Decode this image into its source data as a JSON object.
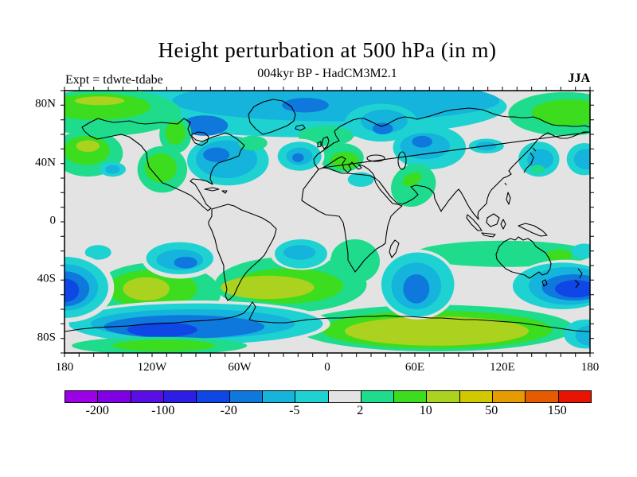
{
  "chart_data": {
    "type": "heatmap",
    "subtype": "filled-contour-world-map",
    "title": "Height perturbation at 500 hPa (in m)",
    "subtitle": "004kyr BP - HadCM3M2.1",
    "annotations": {
      "experiment": "Expt = tdwte-tdabe",
      "season": "JJA"
    },
    "units": "m",
    "projection": "equirectangular",
    "lon_range": [
      -180,
      180
    ],
    "lat_range": [
      -90,
      90
    ],
    "axes": {
      "minor_tick_step_deg": 10,
      "lon_ticks": [
        {
          "label": "180",
          "lon": -180
        },
        {
          "label": "120W",
          "lon": -120
        },
        {
          "label": "60W",
          "lon": -60
        },
        {
          "label": "0",
          "lon": 0
        },
        {
          "label": "60E",
          "lon": 60
        },
        {
          "label": "120E",
          "lon": 120
        },
        {
          "label": "180",
          "lon": 180
        }
      ],
      "lat_ticks": [
        {
          "label": "80N",
          "lat": 80
        },
        {
          "label": "40N",
          "lat": 40
        },
        {
          "label": "0",
          "lat": 0
        },
        {
          "label": "40S",
          "lat": -40
        },
        {
          "label": "80S",
          "lat": -80
        }
      ]
    },
    "contour_levels": [
      -200,
      -150,
      -100,
      -50,
      -20,
      -10,
      -5,
      -2,
      2,
      5,
      10,
      20,
      50,
      100,
      150
    ],
    "palette": [
      "#9b00e6",
      "#8000e6",
      "#5a0ee6",
      "#2d1ee6",
      "#0f46e6",
      "#0f78dc",
      "#14b4dc",
      "#1ed2d2",
      "#e3e3e3",
      "#1edc8c",
      "#3cdc1e",
      "#aad21e",
      "#d2c800",
      "#e69b00",
      "#e65a00",
      "#e61400"
    ],
    "background_color": "#e3e3e3",
    "colorbar": {
      "labels": [
        {
          "text": "-200",
          "boundary": 1
        },
        {
          "text": "-100",
          "boundary": 3
        },
        {
          "text": "-20",
          "boundary": 5
        },
        {
          "text": "-5",
          "boundary": 7
        },
        {
          "text": "2",
          "boundary": 9
        },
        {
          "text": "10",
          "boundary": 11
        },
        {
          "text": "50",
          "boundary": 13
        },
        {
          "text": "150",
          "boundary": 15
        }
      ]
    },
    "anomalies": [
      {
        "name": "arctic-negative",
        "blobs": [
          [
            -11,
            79,
            134,
            21,
            0,
            7
          ],
          [
            6,
            83,
            112,
            14,
            0,
            6
          ],
          [
            -15,
            80,
            16,
            5,
            0,
            5
          ],
          [
            37,
            68,
            25,
            13,
            0,
            7
          ],
          [
            39,
            69,
            16,
            8,
            0,
            6
          ],
          [
            38,
            64,
            7,
            4,
            0,
            5
          ],
          [
            -84,
            66,
            16,
            7,
            0,
            5
          ]
        ]
      },
      {
        "name": "alaska-arctic-positive",
        "blobs": [
          [
            -152,
            75,
            52,
            16,
            0,
            9
          ],
          [
            -157,
            79,
            36,
            9,
            0,
            10
          ],
          [
            -156,
            83,
            17,
            3,
            0,
            11
          ]
        ]
      },
      {
        "name": "baffin-positive",
        "blobs": [
          [
            -104,
            60,
            11,
            13,
            0,
            9
          ],
          [
            -104,
            61,
            7,
            8,
            0,
            10
          ]
        ]
      },
      {
        "name": "east-siberia-positive",
        "blobs": [
          [
            163,
            74,
            39,
            15,
            0,
            9
          ],
          [
            166,
            75,
            26,
            9,
            0,
            10
          ]
        ]
      },
      {
        "name": "europe-positive",
        "blobs": [
          [
            -1,
            59,
            19,
            7,
            0,
            9
          ],
          [
            10,
            44,
            15,
            10,
            0,
            9
          ],
          [
            12,
            42,
            10,
            6,
            0,
            10
          ]
        ]
      },
      {
        "name": "ne-pacific-positive",
        "blobs": [
          [
            -164,
            47,
            24,
            16,
            0,
            9
          ],
          [
            -165,
            49,
            16,
            10,
            0,
            10
          ],
          [
            -164,
            52,
            8,
            4,
            0,
            11
          ]
        ]
      },
      {
        "name": "west-us-positive",
        "blobs": [
          [
            -113,
            36,
            17,
            16,
            0,
            9
          ],
          [
            -114,
            37,
            11,
            10,
            0,
            10
          ]
        ]
      },
      {
        "name": "subtropical-pacific-negative",
        "blobs": [
          [
            -147,
            36,
            9,
            5,
            0,
            7
          ],
          [
            -147,
            36,
            5,
            3,
            0,
            6
          ]
        ]
      },
      {
        "name": "east-north-america-negative",
        "blobs": [
          [
            -68,
            42,
            28,
            17,
            0,
            7
          ],
          [
            -69,
            43,
            21,
            13,
            0,
            6
          ],
          [
            -76,
            46,
            9,
            5,
            0,
            5
          ]
        ]
      },
      {
        "name": "newfoundland-positive",
        "blobs": [
          [
            -51,
            54,
            10,
            5,
            0,
            9
          ]
        ]
      },
      {
        "name": "mid-atlantic-negative",
        "blobs": [
          [
            -19,
            45,
            17,
            12,
            0,
            8
          ],
          [
            -19,
            45,
            15,
            10,
            0,
            7
          ],
          [
            -19,
            45,
            9,
            6,
            0,
            6
          ],
          [
            -20,
            44,
            4,
            3,
            0,
            5
          ]
        ]
      },
      {
        "name": "central-asia-negative",
        "blobs": [
          [
            70,
            51,
            25,
            15,
            0,
            7
          ],
          [
            67,
            52,
            17,
            9,
            0,
            6
          ],
          [
            65,
            55,
            7,
            4,
            0,
            5
          ],
          [
            109,
            52,
            12,
            5,
            0,
            7
          ],
          [
            109,
            52,
            7,
            3,
            0,
            6
          ]
        ]
      },
      {
        "name": "middle-east-positive",
        "blobs": [
          [
            59,
            25,
            16,
            14,
            -35,
            9
          ],
          [
            58,
            29,
            7,
            4,
            -25,
            10
          ]
        ]
      },
      {
        "name": "libya-negative",
        "blobs": [
          [
            23,
            29,
            9,
            5,
            0,
            7
          ]
        ]
      },
      {
        "name": "japan-negative",
        "blobs": [
          [
            145,
            43,
            14,
            12,
            0,
            7
          ],
          [
            146,
            43,
            9,
            7,
            0,
            6
          ],
          [
            144,
            36,
            5,
            3,
            0,
            9
          ]
        ]
      },
      {
        "name": "nw-pacific-negative",
        "blobs": [
          [
            176,
            43,
            12,
            11,
            0,
            7
          ],
          [
            177,
            43,
            8,
            7,
            0,
            6
          ]
        ]
      },
      {
        "name": "se-pacific-positive-band",
        "blobs": [
          [
            -117,
            -49,
            44,
            21,
            0,
            9
          ],
          [
            -120,
            -46,
            31,
            13,
            0,
            10
          ],
          [
            -124,
            -46,
            16,
            8,
            0,
            11
          ]
        ]
      },
      {
        "name": "south-atlantic-positive-band",
        "blobs": [
          [
            -25,
            -43,
            52,
            19,
            0,
            9
          ],
          [
            -27,
            -44,
            38,
            12,
            0,
            10
          ],
          [
            -41,
            -45,
            32,
            8,
            0,
            11
          ]
        ]
      },
      {
        "name": "south-africa-positive",
        "blobs": [
          [
            19,
            -27,
            17,
            15,
            0,
            9
          ]
        ]
      },
      {
        "name": "australia-positive-band",
        "blobs": [
          [
            121,
            -22,
            61,
            9,
            0,
            9
          ],
          [
            159,
            -23,
            9,
            4,
            0,
            10
          ]
        ]
      },
      {
        "name": "east-antarctic-positive-band",
        "blobs": [
          [
            74,
            -73,
            95,
            16,
            0,
            9
          ],
          [
            75,
            -74,
            79,
            13,
            0,
            10
          ],
          [
            75,
            -75,
            63,
            10,
            0,
            11
          ]
        ]
      },
      {
        "name": "south-atlantic-negative",
        "blobs": [
          [
            -18,
            -22,
            21,
            11,
            0,
            8
          ],
          [
            -18,
            -22,
            18,
            10,
            0,
            7
          ],
          [
            -19,
            -21,
            11,
            5,
            0,
            6
          ]
        ]
      },
      {
        "name": "west-antarctic-negative-band",
        "blobs": [
          [
            -90,
            -70,
            92,
            16,
            0,
            8
          ],
          [
            -90,
            -70,
            87,
            14,
            0,
            7
          ],
          [
            -92,
            -70,
            70,
            10,
            0,
            6
          ],
          [
            -98,
            -72,
            55,
            8,
            0,
            5
          ],
          [
            -113,
            -74,
            24,
            5,
            0,
            4
          ]
        ]
      },
      {
        "name": "antarctic-interior-positive",
        "blobs": [
          [
            -115,
            -85,
            60,
            6,
            0,
            9
          ],
          [
            -112,
            -85,
            35,
            4,
            0,
            10
          ]
        ]
      },
      {
        "name": "south-pacific-negative-small",
        "blobs": [
          [
            -157,
            -21,
            9,
            5,
            0,
            7
          ]
        ]
      },
      {
        "name": "central-south-pacific-negative",
        "blobs": [
          [
            -101,
            -25,
            26,
            14,
            0,
            8
          ],
          [
            -101,
            -25,
            23,
            11,
            0,
            7
          ],
          [
            -101,
            -26,
            16,
            7,
            0,
            6
          ],
          [
            -97,
            -28,
            8,
            4,
            0,
            5
          ]
        ]
      },
      {
        "name": "dateline-southern-negative",
        "blobs": [
          [
            -179,
            -45,
            33,
            24,
            0,
            8
          ],
          [
            -180,
            -45,
            30,
            21,
            0,
            7
          ],
          [
            -180,
            -45,
            23,
            16,
            0,
            6
          ],
          [
            -180,
            -46,
            17,
            12,
            0,
            5
          ],
          [
            -180,
            -47,
            10,
            8,
            0,
            4
          ]
        ]
      },
      {
        "name": "south-indian-negative",
        "blobs": [
          [
            62,
            -43,
            27,
            24,
            0,
            8
          ],
          [
            62,
            -43,
            25,
            22,
            0,
            7
          ],
          [
            61,
            -44,
            17,
            16,
            0,
            6
          ],
          [
            61,
            -46,
            9,
            10,
            0,
            5
          ]
        ]
      },
      {
        "name": "tasman-negative",
        "blobs": [
          [
            163,
            -44,
            37,
            18,
            0,
            8
          ],
          [
            161,
            -44,
            34,
            16,
            0,
            7
          ],
          [
            165,
            -44,
            27,
            13,
            0,
            6
          ],
          [
            169,
            -45,
            22,
            9,
            0,
            5
          ],
          [
            170,
            -46,
            14,
            6,
            0,
            4
          ]
        ]
      },
      {
        "name": "dateline-20s-negative",
        "blobs": [
          [
            176,
            -20,
            9,
            5,
            0,
            7
          ]
        ]
      },
      {
        "name": "ross-sea-negative",
        "blobs": [
          [
            177,
            -77,
            15,
            10,
            0,
            7
          ],
          [
            180,
            -78,
            10,
            7,
            0,
            6
          ]
        ]
      }
    ]
  }
}
